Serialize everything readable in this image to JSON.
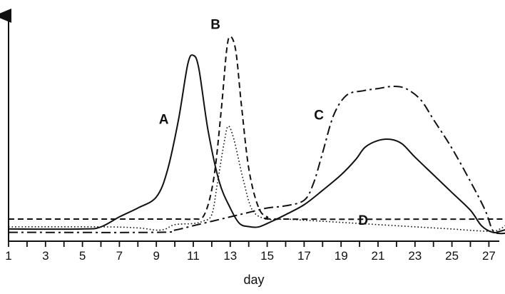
{
  "chart_data": {
    "type": "line",
    "xlabel": "day",
    "ylabel": "",
    "x_ticks": [
      1,
      3,
      5,
      7,
      9,
      11,
      13,
      15,
      17,
      19,
      21,
      23,
      25,
      27
    ],
    "xlim": [
      1,
      28.2
    ],
    "y_ticks_shown": false,
    "grid": false,
    "legend": "none",
    "series": [
      {
        "name": "A",
        "line_style": "solid",
        "points": [
          [
            1,
            0.055
          ],
          [
            5,
            0.055
          ],
          [
            6,
            0.065
          ],
          [
            7,
            0.11
          ],
          [
            8,
            0.15
          ],
          [
            9,
            0.2
          ],
          [
            9.6,
            0.32
          ],
          [
            10.2,
            0.55
          ],
          [
            10.7,
            0.8
          ],
          [
            11,
            0.84
          ],
          [
            11.3,
            0.78
          ],
          [
            11.8,
            0.5
          ],
          [
            12.4,
            0.27
          ],
          [
            13,
            0.15
          ],
          [
            13.5,
            0.08
          ],
          [
            14,
            0.066
          ],
          [
            14.5,
            0.064
          ],
          [
            15,
            0.08
          ],
          [
            16,
            0.12
          ],
          [
            17,
            0.165
          ],
          [
            18,
            0.23
          ],
          [
            19,
            0.3
          ],
          [
            19.8,
            0.37
          ],
          [
            20.3,
            0.425
          ],
          [
            21,
            0.455
          ],
          [
            21.7,
            0.46
          ],
          [
            22.3,
            0.44
          ],
          [
            23,
            0.38
          ],
          [
            24,
            0.3
          ],
          [
            25,
            0.22
          ],
          [
            26,
            0.14
          ],
          [
            26.6,
            0.07
          ],
          [
            27.2,
            0.04
          ],
          [
            27.6,
            0.045
          ],
          [
            28.2,
            0.06
          ]
        ]
      },
      {
        "name": "B",
        "line_style": "dashed",
        "points": [
          [
            1,
            0.1
          ],
          [
            9.8,
            0.1
          ],
          [
            11,
            0.1
          ],
          [
            11.6,
            0.12
          ],
          [
            12.1,
            0.28
          ],
          [
            12.5,
            0.58
          ],
          [
            12.8,
            0.86
          ],
          [
            13,
            0.925
          ],
          [
            13.3,
            0.86
          ],
          [
            13.6,
            0.62
          ],
          [
            14,
            0.33
          ],
          [
            14.5,
            0.16
          ],
          [
            15,
            0.11
          ],
          [
            16,
            0.1
          ],
          [
            28.2,
            0.1
          ]
        ]
      },
      {
        "name": "C",
        "line_style": "dash-dot",
        "points": [
          [
            1,
            0.04
          ],
          [
            9,
            0.04
          ],
          [
            10,
            0.05
          ],
          [
            11,
            0.07
          ],
          [
            12,
            0.09
          ],
          [
            13,
            0.11
          ],
          [
            14,
            0.13
          ],
          [
            15,
            0.15
          ],
          [
            16,
            0.16
          ],
          [
            17,
            0.185
          ],
          [
            17.5,
            0.26
          ],
          [
            18,
            0.4
          ],
          [
            18.6,
            0.57
          ],
          [
            19.3,
            0.66
          ],
          [
            20.2,
            0.68
          ],
          [
            21,
            0.69
          ],
          [
            21.8,
            0.7
          ],
          [
            22.5,
            0.69
          ],
          [
            23.3,
            0.64
          ],
          [
            24,
            0.55
          ],
          [
            25,
            0.42
          ],
          [
            26,
            0.27
          ],
          [
            26.8,
            0.14
          ],
          [
            27.2,
            0.05
          ],
          [
            27.6,
            0.035
          ],
          [
            28.2,
            0.04
          ]
        ]
      },
      {
        "name": "D",
        "line_style": "dotted",
        "points": [
          [
            1,
            0.065
          ],
          [
            6,
            0.065
          ],
          [
            8,
            0.06
          ],
          [
            9,
            0.05
          ],
          [
            9.5,
            0.055
          ],
          [
            10,
            0.075
          ],
          [
            11,
            0.08
          ],
          [
            11.5,
            0.09
          ],
          [
            12,
            0.12
          ],
          [
            12.3,
            0.26
          ],
          [
            12.7,
            0.46
          ],
          [
            12.9,
            0.52
          ],
          [
            13.2,
            0.46
          ],
          [
            13.7,
            0.28
          ],
          [
            14.2,
            0.14
          ],
          [
            15,
            0.1
          ],
          [
            16,
            0.1
          ],
          [
            17,
            0.095
          ],
          [
            19,
            0.085
          ],
          [
            21,
            0.075
          ],
          [
            23,
            0.065
          ],
          [
            25,
            0.055
          ],
          [
            27,
            0.045
          ],
          [
            27.6,
            0.055
          ],
          [
            28.2,
            0.09
          ]
        ]
      }
    ],
    "annotations": [
      {
        "text": "A",
        "x": 9.4,
        "y": 0.53
      },
      {
        "text": "B",
        "x": 12.2,
        "y": 0.96
      },
      {
        "text": "C",
        "x": 17.8,
        "y": 0.55
      },
      {
        "text": "D",
        "x": 20.2,
        "y": 0.075
      }
    ]
  }
}
